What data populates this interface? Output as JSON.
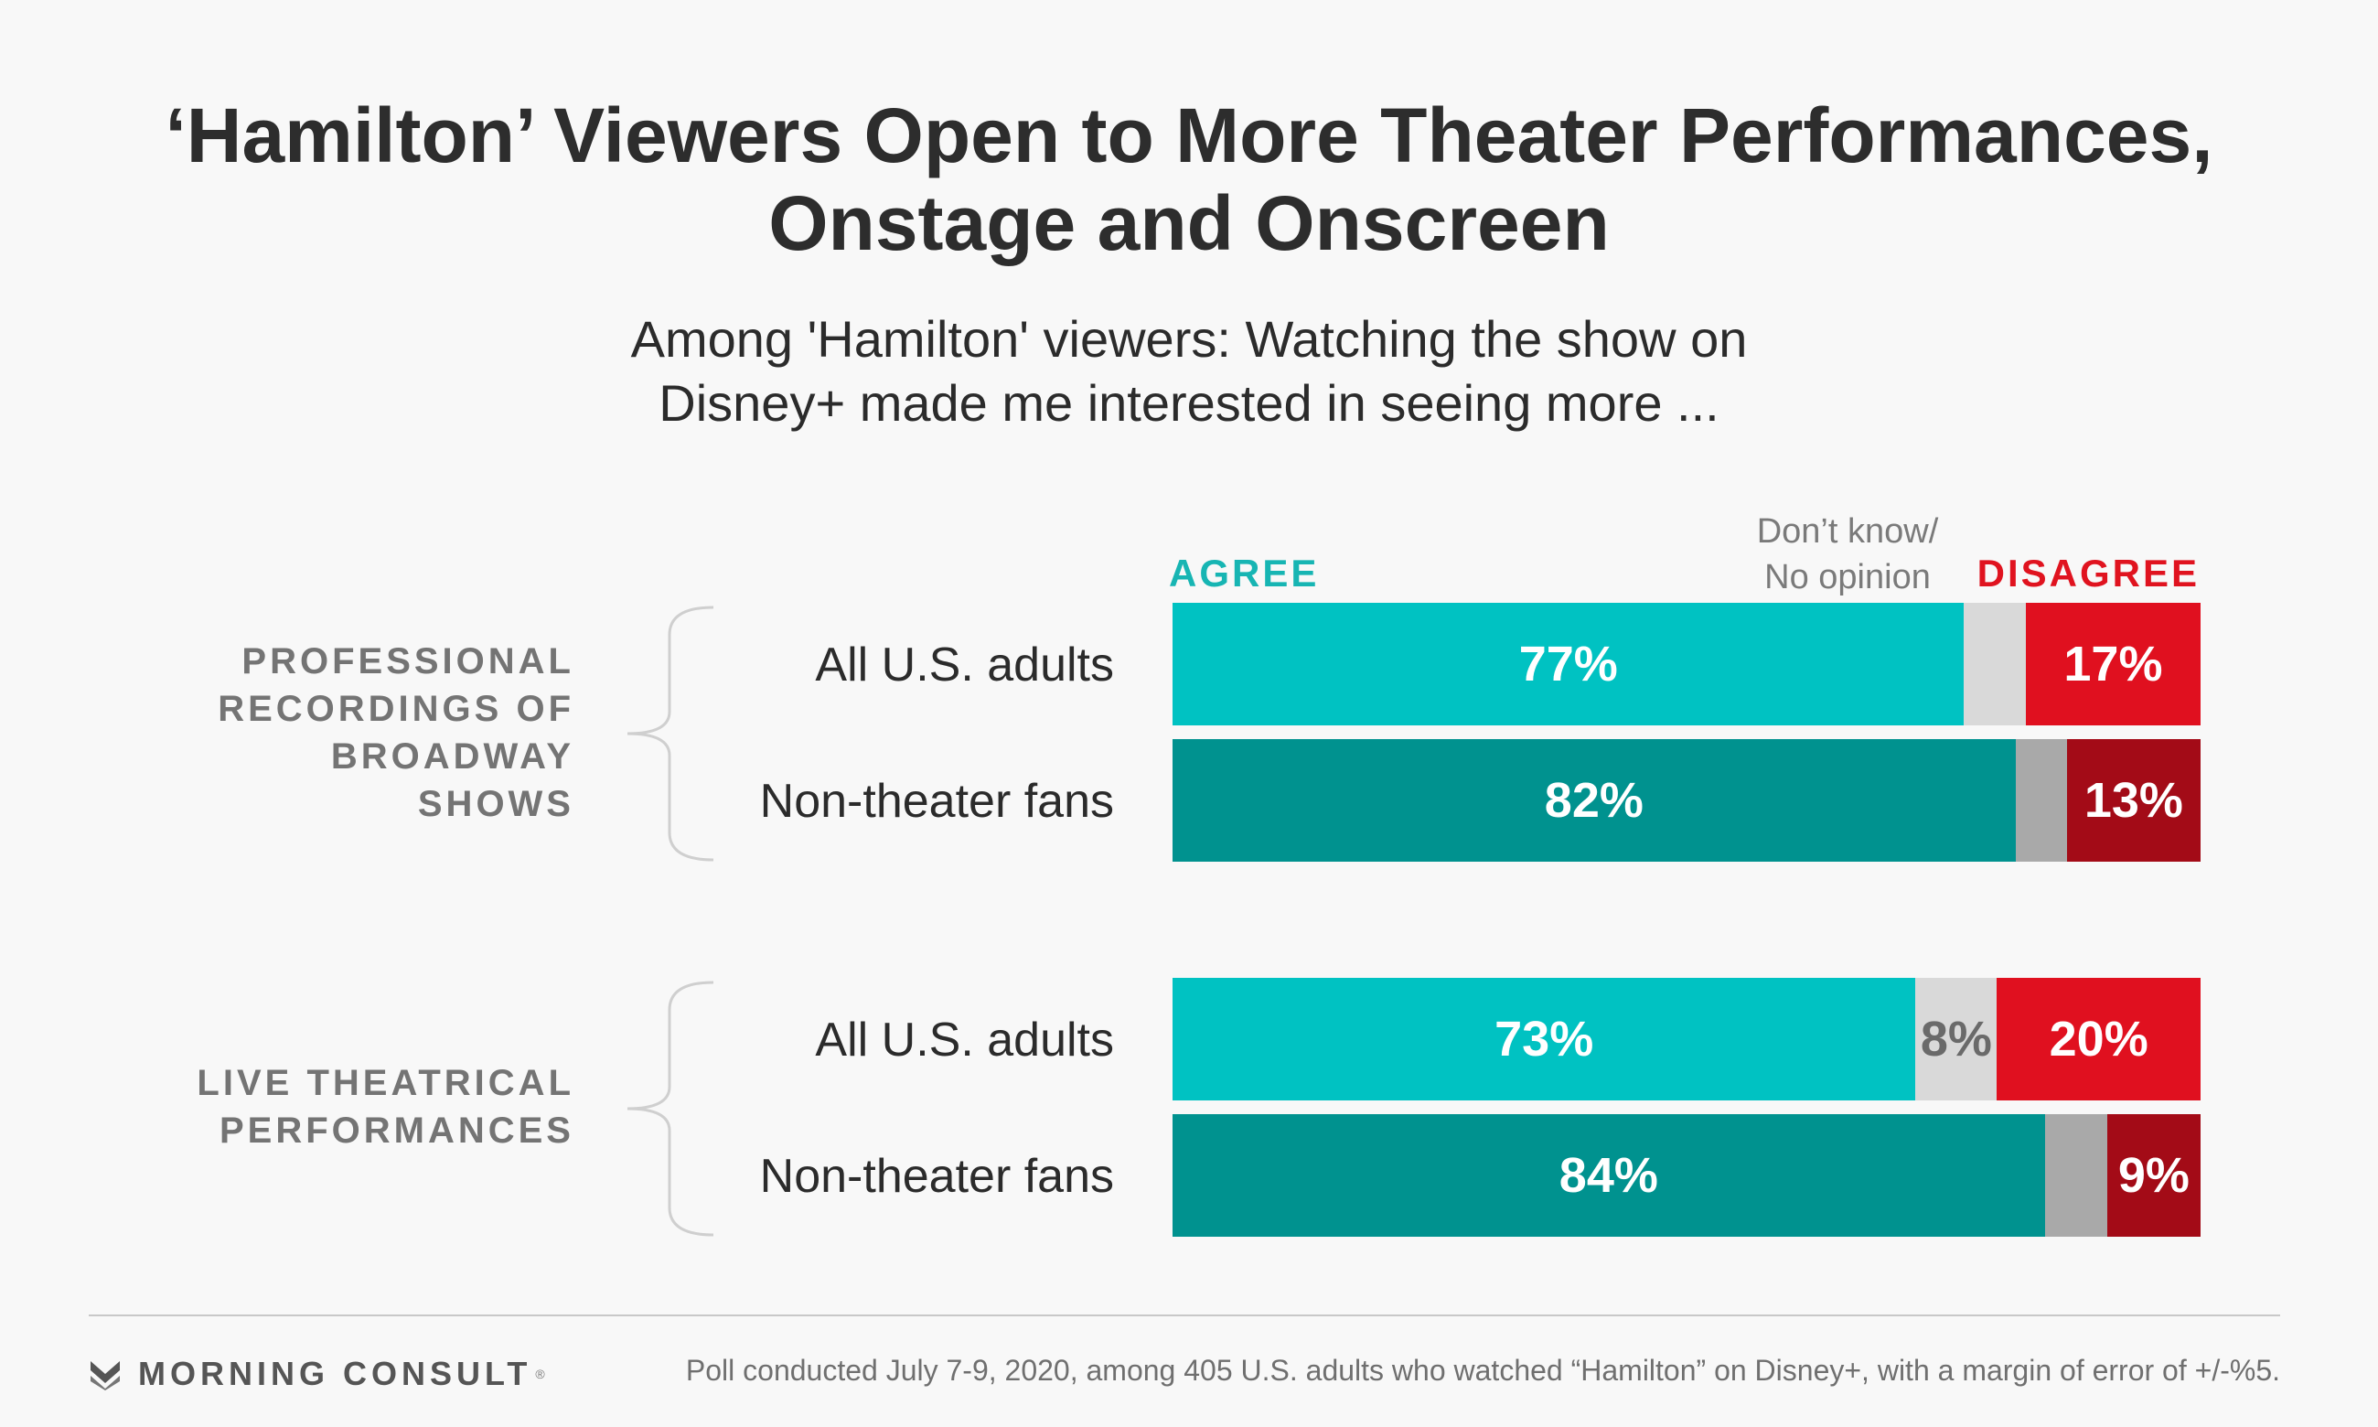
{
  "title_lines": [
    "‘Hamilton’ Viewers Open to More Theater Performances,",
    "Onstage and Onscreen"
  ],
  "subtitle_lines": [
    "Among 'Hamilton' viewers: Watching the show on",
    "Disney+ made me interested in seeing more ..."
  ],
  "legend": {
    "agree": "AGREE",
    "dont_know_lines": [
      "Don’t know/",
      "No opinion"
    ],
    "disagree": "DISAGREE"
  },
  "groups": [
    {
      "label_lines": [
        "PROFESSIONAL",
        "RECORDINGS OF",
        "BROADWAY",
        "SHOWS"
      ]
    },
    {
      "label_lines": [
        "LIVE THEATRICAL",
        "PERFORMANCES"
      ]
    }
  ],
  "colors": {
    "agree_all": "#00c2c2",
    "agree_fans": "#00928f",
    "dk_all": "#d9d9d9",
    "dk_fans": "#a9a9a9",
    "disagree_all": "#e0101f",
    "disagree_fans": "#a30b17"
  },
  "chart_data": {
    "type": "bar",
    "orientation": "horizontal",
    "stacked": true,
    "categories": [
      "All U.S. adults",
      "Non-theater fans",
      "All U.S. adults",
      "Non-theater fans"
    ],
    "series": [
      {
        "name": "AGREE",
        "values": [
          77,
          82,
          73,
          84
        ],
        "labels": [
          "77%",
          "82%",
          "73%",
          "84%"
        ]
      },
      {
        "name": "Don’t know/ No opinion",
        "values": [
          6,
          5,
          8,
          6
        ],
        "labels": [
          "",
          "",
          "8%",
          ""
        ]
      },
      {
        "name": "DISAGREE",
        "values": [
          17,
          13,
          20,
          9
        ],
        "labels": [
          "17%",
          "13%",
          "20%",
          "9%"
        ]
      }
    ],
    "xlim": [
      0,
      100
    ],
    "grid": false
  },
  "footer": {
    "logo": "MORNING CONSULT",
    "logo_mark": "®",
    "note": "Poll conducted July 7-9, 2020, among 405 U.S. adults who watched “Hamilton” on Disney+, with a margin of error of +/-%5."
  }
}
